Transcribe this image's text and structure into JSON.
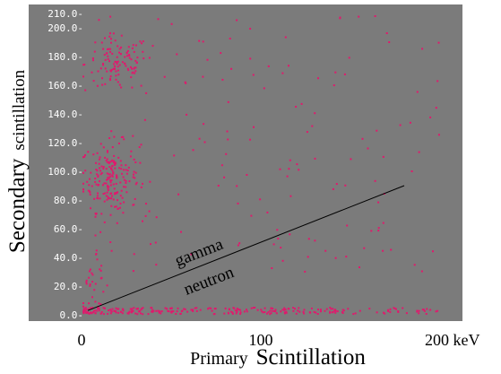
{
  "chart_data": {
    "type": "scatter",
    "colors": {
      "panel": "#7b7b7b",
      "points": "#e0196d",
      "line": "#000000",
      "ytick_text": "#ffffff"
    },
    "xlim": [
      0,
      210
    ],
    "ylim": [
      0,
      210
    ],
    "y_ticks": [
      0,
      20,
      40,
      60,
      80,
      100,
      120,
      140,
      160,
      180,
      200,
      210
    ],
    "y_tick_labels": [
      "0.0-",
      "20.0-",
      "40.0-",
      "60.0-",
      "80.0-",
      "100.0-",
      "120.0-",
      "140.0-",
      "160.0-",
      "180.0-",
      "200.0-",
      "210.0-"
    ],
    "x_ticks": [
      0,
      100,
      200
    ],
    "x_tick_labels": [
      "0",
      "100",
      "200 keV"
    ],
    "xlabel": {
      "part1": "Primary",
      "part2": "Scintillation"
    },
    "ylabel": {
      "part1": "Secondary",
      "part2": "scintillation"
    },
    "separator_line": {
      "x": [
        0,
        180
      ],
      "y": [
        3,
        90
      ]
    },
    "annotations": [
      "gamma",
      "neutron"
    ],
    "clusters": [
      {
        "name": "neutron-band",
        "n": 260,
        "cx": 55,
        "cy": 2.5,
        "sx": 45,
        "sy": 1.0,
        "xmin": 1,
        "xmax": 200,
        "ymin": 0.5,
        "ymax": 5
      },
      {
        "name": "gamma-mid",
        "n": 190,
        "cx": 16,
        "cy": 96,
        "sx": 8,
        "sy": 12
      },
      {
        "name": "gamma-upper",
        "n": 110,
        "cx": 20,
        "cy": 175,
        "sx": 9,
        "sy": 10
      },
      {
        "name": "low-column",
        "n": 30,
        "cx": 7,
        "cy": 18,
        "sx": 4,
        "sy": 10,
        "ymin": 4
      },
      {
        "name": "scatter-region",
        "n": 160,
        "cx": 60,
        "cy": 140,
        "sx": 40,
        "sy": 50,
        "xmin": 8,
        "xmax": 200,
        "ymin": 30,
        "ymax": 210
      }
    ]
  }
}
